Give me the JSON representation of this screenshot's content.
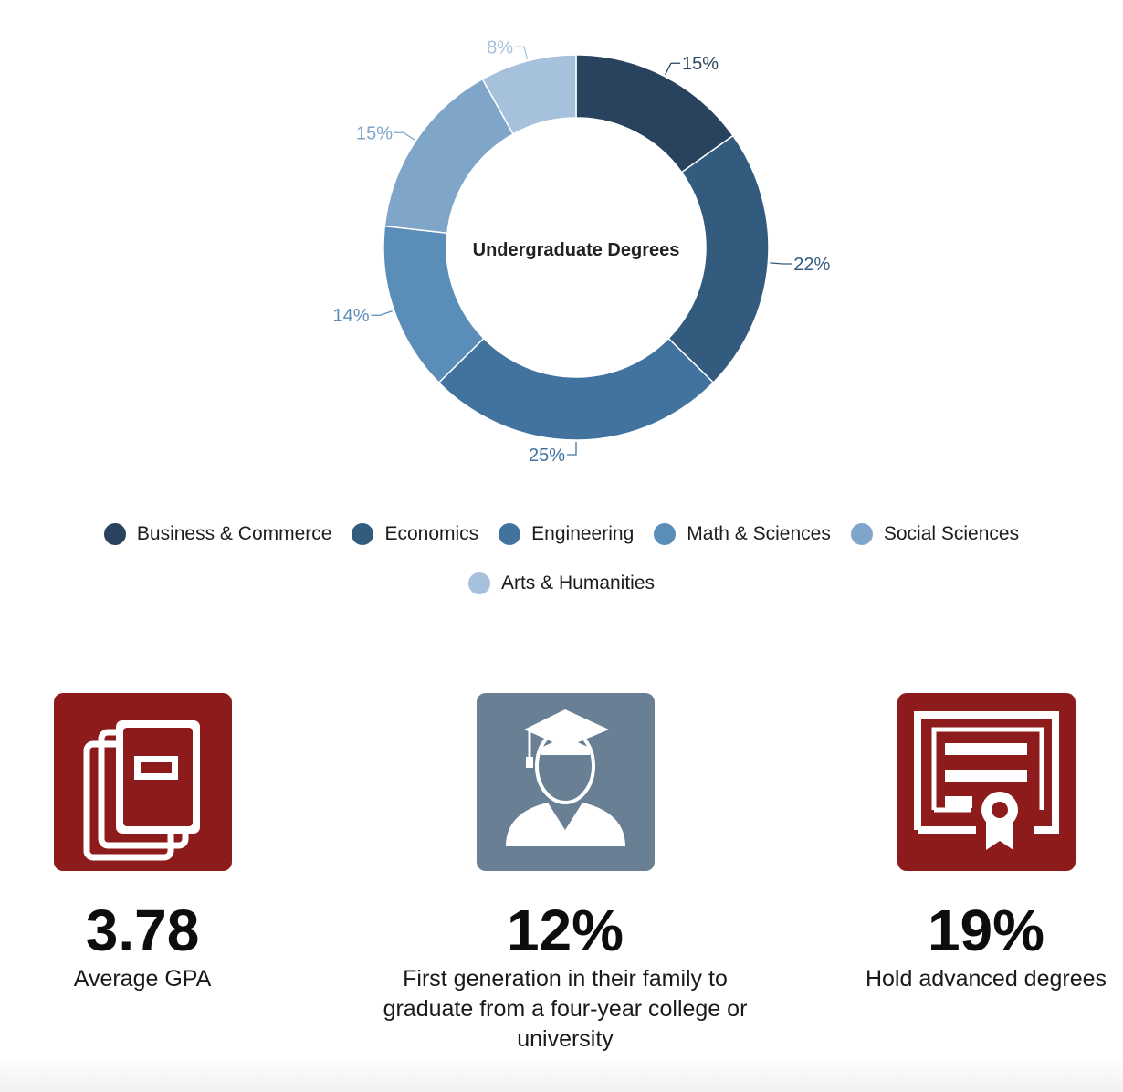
{
  "chart_data": {
    "type": "pie",
    "title": "Undergraduate Degrees",
    "categories": [
      "Business & Commerce",
      "Economics",
      "Engineering",
      "Math & Sciences",
      "Social Sciences",
      "Arts & Humanities"
    ],
    "values": [
      15,
      22,
      25,
      14,
      15,
      8
    ],
    "labels": [
      "15%",
      "22%",
      "25%",
      "14%",
      "15%",
      "8%"
    ],
    "colors": [
      "#29425e",
      "#335b7e",
      "#42739f",
      "#5b8db9",
      "#7fa6c8",
      "#a5c1db"
    ],
    "legend_position": "bottom"
  },
  "stats": [
    {
      "icon": "book-icon",
      "value": "3.78",
      "label": "Average GPA",
      "color": "#8e1b1b"
    },
    {
      "icon": "graduate-icon",
      "value": "12%",
      "label": "First generation in their family to graduate from a four-year college or university",
      "color": "#687f94"
    },
    {
      "icon": "certificate-icon",
      "value": "19%",
      "label": "Hold advanced degrees",
      "color": "#8e1b1b"
    }
  ]
}
